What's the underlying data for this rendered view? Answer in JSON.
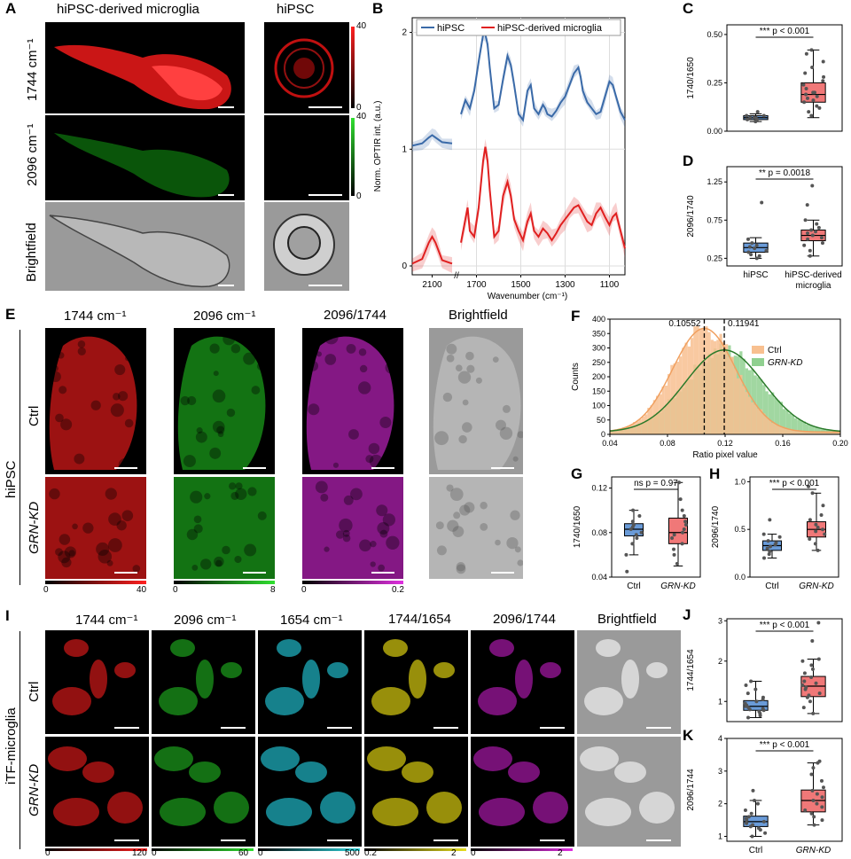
{
  "panels": {
    "A": {
      "label": "A",
      "col_titles": [
        "hiPSC-derived microglia",
        "hiPSC"
      ],
      "row_labels": [
        "1744 cm⁻¹",
        "2096 cm⁻¹",
        "Brightfield"
      ],
      "colorbar_red": {
        "max": "40",
        "min": "0",
        "color": "#ff2020"
      },
      "colorbar_green": {
        "max": "40",
        "min": "0",
        "color": "#30e030"
      }
    },
    "B": {
      "label": "B"
    },
    "C": {
      "label": "C"
    },
    "D": {
      "label": "D"
    },
    "E": {
      "label": "E",
      "col_titles": [
        "1744 cm⁻¹",
        "2096 cm⁻¹",
        "2096/1744",
        "Brightfield"
      ],
      "group_label": "hiPSC",
      "row_labels": [
        "Ctrl",
        "GRN-KD"
      ],
      "colorbars": [
        {
          "min": "0",
          "max": "40",
          "color": "#ff2020"
        },
        {
          "min": "0",
          "max": "8",
          "color": "#30e030"
        },
        {
          "min": "0",
          "max": "0.2",
          "color": "#e030e0"
        }
      ]
    },
    "F": {
      "label": "F"
    },
    "G": {
      "label": "G"
    },
    "H": {
      "label": "H"
    },
    "I": {
      "label": "I",
      "col_titles": [
        "1744 cm⁻¹",
        "2096 cm⁻¹",
        "1654 cm⁻¹",
        "1744/1654",
        "2096/1744",
        "Brightfield"
      ],
      "group_label": "iTF-microglia",
      "row_labels": [
        "Ctrl",
        "GRN-KD"
      ],
      "colorbars": [
        {
          "min": "0",
          "max": "120",
          "color": "#ff2020"
        },
        {
          "min": "0",
          "max": "60",
          "color": "#30e030"
        },
        {
          "min": "0",
          "max": "500",
          "color": "#30d8e0"
        },
        {
          "min": "0.2",
          "max": "2",
          "color": "#e8e020"
        },
        {
          "min": "0",
          "max": "2",
          "color": "#e030e0"
        }
      ]
    },
    "J": {
      "label": "J"
    },
    "K": {
      "label": "K"
    }
  },
  "chart_data": [
    {
      "id": "B",
      "type": "line",
      "xlabel": "Wavenumber (cm⁻¹)",
      "ylabel": "Norm. OPTIR int. (a.u.)",
      "xticks": [
        "2100",
        "1700",
        "1500",
        "1300",
        "1100"
      ],
      "yticks": [
        "0",
        "1",
        "2"
      ],
      "legend_position": "top",
      "series": [
        {
          "name": "hiPSC",
          "color": "#3a6aa8",
          "offset": 1.0,
          "x": [
            2160,
            2130,
            2110,
            2100,
            2090,
            2070,
            2040,
            1770,
            1750,
            1730,
            1710,
            1690,
            1670,
            1660,
            1650,
            1640,
            1620,
            1600,
            1580,
            1560,
            1545,
            1530,
            1510,
            1490,
            1470,
            1455,
            1440,
            1420,
            1400,
            1390,
            1380,
            1360,
            1340,
            1320,
            1300,
            1280,
            1260,
            1240,
            1230,
            1220,
            1200,
            1180,
            1160,
            1140,
            1120,
            1100,
            1085,
            1070,
            1050,
            1030
          ],
          "y": [
            0.03,
            0.05,
            0.1,
            0.12,
            0.1,
            0.06,
            0.05,
            0.3,
            0.42,
            0.35,
            0.5,
            0.75,
            0.98,
            0.98,
            0.9,
            0.7,
            0.35,
            0.38,
            0.6,
            0.8,
            0.72,
            0.55,
            0.3,
            0.25,
            0.5,
            0.55,
            0.35,
            0.3,
            0.38,
            0.35,
            0.3,
            0.28,
            0.33,
            0.4,
            0.45,
            0.55,
            0.65,
            0.7,
            0.62,
            0.5,
            0.4,
            0.35,
            0.3,
            0.32,
            0.45,
            0.58,
            0.55,
            0.45,
            0.32,
            0.25
          ]
        },
        {
          "name": "hiPSC-derived microglia",
          "color": "#e02020",
          "offset": 0.0,
          "x": [
            2160,
            2130,
            2110,
            2100,
            2090,
            2070,
            2040,
            1770,
            1750,
            1740,
            1730,
            1710,
            1690,
            1670,
            1660,
            1650,
            1640,
            1620,
            1600,
            1580,
            1560,
            1545,
            1530,
            1510,
            1490,
            1470,
            1455,
            1440,
            1420,
            1400,
            1380,
            1360,
            1340,
            1320,
            1300,
            1280,
            1260,
            1240,
            1220,
            1200,
            1180,
            1160,
            1140,
            1120,
            1100,
            1085,
            1070,
            1050,
            1030
          ],
          "y": [
            0.02,
            0.06,
            0.2,
            0.25,
            0.2,
            0.05,
            0.02,
            0.2,
            0.4,
            0.5,
            0.3,
            0.25,
            0.5,
            0.9,
            1.02,
            0.9,
            0.65,
            0.25,
            0.3,
            0.6,
            0.72,
            0.6,
            0.4,
            0.3,
            0.22,
            0.38,
            0.45,
            0.3,
            0.25,
            0.32,
            0.28,
            0.22,
            0.28,
            0.35,
            0.4,
            0.45,
            0.5,
            0.52,
            0.45,
            0.38,
            0.35,
            0.45,
            0.5,
            0.42,
            0.35,
            0.42,
            0.45,
            0.3,
            0.15
          ]
        }
      ]
    },
    {
      "id": "C",
      "type": "box",
      "ylabel": "1740/1650",
      "yticks": [
        "0.00",
        "0.25",
        "0.50"
      ],
      "ylim": [
        0,
        0.55
      ],
      "annotation": "*** p < 0.001",
      "boxes": [
        {
          "group": "hiPSC",
          "color": "#6a9bd8",
          "q1": 0.06,
          "median": 0.07,
          "q3": 0.08,
          "whisker_low": 0.05,
          "whisker_high": 0.09,
          "points": [
            0.05,
            0.06,
            0.06,
            0.07,
            0.07,
            0.07,
            0.08,
            0.08,
            0.1
          ]
        },
        {
          "group": "hiPSC-derived microglia",
          "color": "#f07878",
          "q1": 0.15,
          "median": 0.19,
          "q3": 0.25,
          "whisker_low": 0.07,
          "whisker_high": 0.42,
          "points": [
            0.08,
            0.1,
            0.12,
            0.13,
            0.15,
            0.16,
            0.17,
            0.18,
            0.19,
            0.2,
            0.2,
            0.22,
            0.24,
            0.26,
            0.28,
            0.3,
            0.33,
            0.36,
            0.4,
            0.42
          ]
        }
      ]
    },
    {
      "id": "D",
      "type": "box",
      "ylabel": "2096/1740",
      "yticks": [
        "0.25",
        "0.75",
        "1.25"
      ],
      "ylim": [
        0.15,
        1.45
      ],
      "annotation": "** p = 0.0018",
      "categories": [
        "hiPSC",
        "hiPSC-derived microglia"
      ],
      "boxes": [
        {
          "group": "hiPSC",
          "color": "#6a9bd8",
          "q1": 0.33,
          "median": 0.39,
          "q3": 0.45,
          "whisker_low": 0.25,
          "whisker_high": 0.52,
          "points": [
            0.25,
            0.28,
            0.3,
            0.33,
            0.35,
            0.38,
            0.4,
            0.42,
            0.45,
            0.5,
            0.98
          ]
        },
        {
          "group": "hiPSC-derived microglia",
          "color": "#f07878",
          "q1": 0.48,
          "median": 0.55,
          "q3": 0.62,
          "whisker_low": 0.28,
          "whisker_high": 0.75,
          "points": [
            0.28,
            0.35,
            0.42,
            0.45,
            0.5,
            0.52,
            0.55,
            0.58,
            0.6,
            0.62,
            0.65,
            0.7,
            0.75,
            0.95,
            1.2
          ]
        }
      ]
    },
    {
      "id": "F",
      "type": "histogram",
      "xlabel": "Ratio pixel value",
      "ylabel": "Counts",
      "xticks": [
        "0.04",
        "0.08",
        "0.12",
        "0.16",
        "0.20"
      ],
      "yticks": [
        "0",
        "50",
        "100",
        "150",
        "200",
        "250",
        "300",
        "350",
        "400"
      ],
      "xlim": [
        0.04,
        0.2
      ],
      "ylim": [
        0,
        400
      ],
      "annotations": [
        "0.10552",
        "0.11941"
      ],
      "series": [
        {
          "name": "Ctrl",
          "color": "#f8c090",
          "line": "#f0a060",
          "mean": 0.10552,
          "sd": 0.022,
          "peak": 360
        },
        {
          "name": "GRN-KD",
          "color": "#90d090",
          "line": "#2a7a2a",
          "mean": 0.11941,
          "sd": 0.027,
          "peak": 285
        }
      ]
    },
    {
      "id": "G",
      "type": "box",
      "ylabel": "1740/1650",
      "yticks": [
        "0.04",
        "0.08",
        "0.12"
      ],
      "ylim": [
        0.04,
        0.13
      ],
      "annotation": "ns p = 0.97",
      "categories": [
        "Ctrl",
        "GRN-KD"
      ],
      "boxes": [
        {
          "group": "Ctrl",
          "color": "#6a9bd8",
          "q1": 0.077,
          "median": 0.083,
          "q3": 0.088,
          "whisker_low": 0.06,
          "whisker_high": 0.1,
          "points": [
            0.045,
            0.06,
            0.07,
            0.075,
            0.078,
            0.08,
            0.083,
            0.085,
            0.087,
            0.09,
            0.095,
            0.1
          ]
        },
        {
          "group": "GRN-KD",
          "color": "#f07878",
          "q1": 0.07,
          "median": 0.08,
          "q3": 0.093,
          "whisker_low": 0.05,
          "whisker_high": 0.125,
          "points": [
            0.052,
            0.06,
            0.065,
            0.07,
            0.075,
            0.078,
            0.08,
            0.083,
            0.087,
            0.09,
            0.095,
            0.1,
            0.11,
            0.125
          ]
        }
      ]
    },
    {
      "id": "H",
      "type": "box",
      "ylabel": "2096/1740",
      "yticks": [
        "0.0",
        "0.5",
        "1.0"
      ],
      "ylim": [
        0,
        1.05
      ],
      "annotation": "*** p < 0.001",
      "categories": [
        "Ctrl",
        "GRN-KD"
      ],
      "boxes": [
        {
          "group": "Ctrl",
          "color": "#6a9bd8",
          "q1": 0.28,
          "median": 0.33,
          "q3": 0.38,
          "whisker_low": 0.2,
          "whisker_high": 0.45,
          "points": [
            0.2,
            0.24,
            0.27,
            0.3,
            0.32,
            0.34,
            0.36,
            0.38,
            0.42,
            0.45,
            0.6
          ]
        },
        {
          "group": "GRN-KD",
          "color": "#f07878",
          "q1": 0.42,
          "median": 0.5,
          "q3": 0.58,
          "whisker_low": 0.28,
          "whisker_high": 0.88,
          "points": [
            0.28,
            0.35,
            0.4,
            0.45,
            0.48,
            0.5,
            0.52,
            0.55,
            0.6,
            0.65,
            0.75,
            0.88,
            0.95
          ]
        }
      ]
    },
    {
      "id": "J",
      "type": "box",
      "ylabel": "1744/1654",
      "yticks": [
        "1",
        "2",
        "3"
      ],
      "ylim": [
        0.5,
        3.05
      ],
      "annotation": "*** p < 0.001",
      "boxes": [
        {
          "group": "Ctrl",
          "color": "#6a9bd8",
          "q1": 0.78,
          "median": 0.88,
          "q3": 1.02,
          "whisker_low": 0.6,
          "whisker_high": 1.5,
          "points": [
            0.6,
            0.65,
            0.7,
            0.75,
            0.78,
            0.8,
            0.82,
            0.85,
            0.88,
            0.9,
            0.95,
            1.0,
            1.05,
            1.1,
            1.2,
            1.3,
            1.4,
            1.5
          ]
        },
        {
          "group": "GRN-KD",
          "color": "#f07878",
          "q1": 1.12,
          "median": 1.38,
          "q3": 1.62,
          "whisker_low": 0.7,
          "whisker_high": 2.05,
          "points": [
            0.7,
            0.85,
            1.0,
            1.1,
            1.15,
            1.2,
            1.3,
            1.35,
            1.4,
            1.45,
            1.5,
            1.6,
            1.7,
            1.8,
            1.9,
            2.0,
            2.05,
            2.5,
            2.95
          ]
        }
      ]
    },
    {
      "id": "K",
      "type": "box",
      "ylabel": "2096/1744",
      "yticks": [
        "1",
        "2",
        "3",
        "4"
      ],
      "ylim": [
        0.85,
        4.0
      ],
      "annotation": "*** p < 0.001",
      "categories": [
        "Ctrl",
        "GRN-KD"
      ],
      "boxes": [
        {
          "group": "Ctrl",
          "color": "#6a9bd8",
          "q1": 1.3,
          "median": 1.45,
          "q3": 1.62,
          "whisker_low": 1.0,
          "whisker_high": 2.1,
          "points": [
            1.0,
            1.1,
            1.2,
            1.25,
            1.3,
            1.35,
            1.4,
            1.45,
            1.5,
            1.55,
            1.6,
            1.7,
            1.8,
            2.0,
            2.1,
            2.4
          ]
        },
        {
          "group": "GRN-KD",
          "color": "#f07878",
          "q1": 1.75,
          "median": 2.1,
          "q3": 2.42,
          "whisker_low": 1.35,
          "whisker_high": 3.25,
          "points": [
            1.35,
            1.5,
            1.6,
            1.7,
            1.8,
            1.9,
            2.0,
            2.1,
            2.2,
            2.3,
            2.4,
            2.5,
            2.7,
            2.9,
            3.1,
            3.25,
            3.3
          ]
        }
      ]
    }
  ]
}
